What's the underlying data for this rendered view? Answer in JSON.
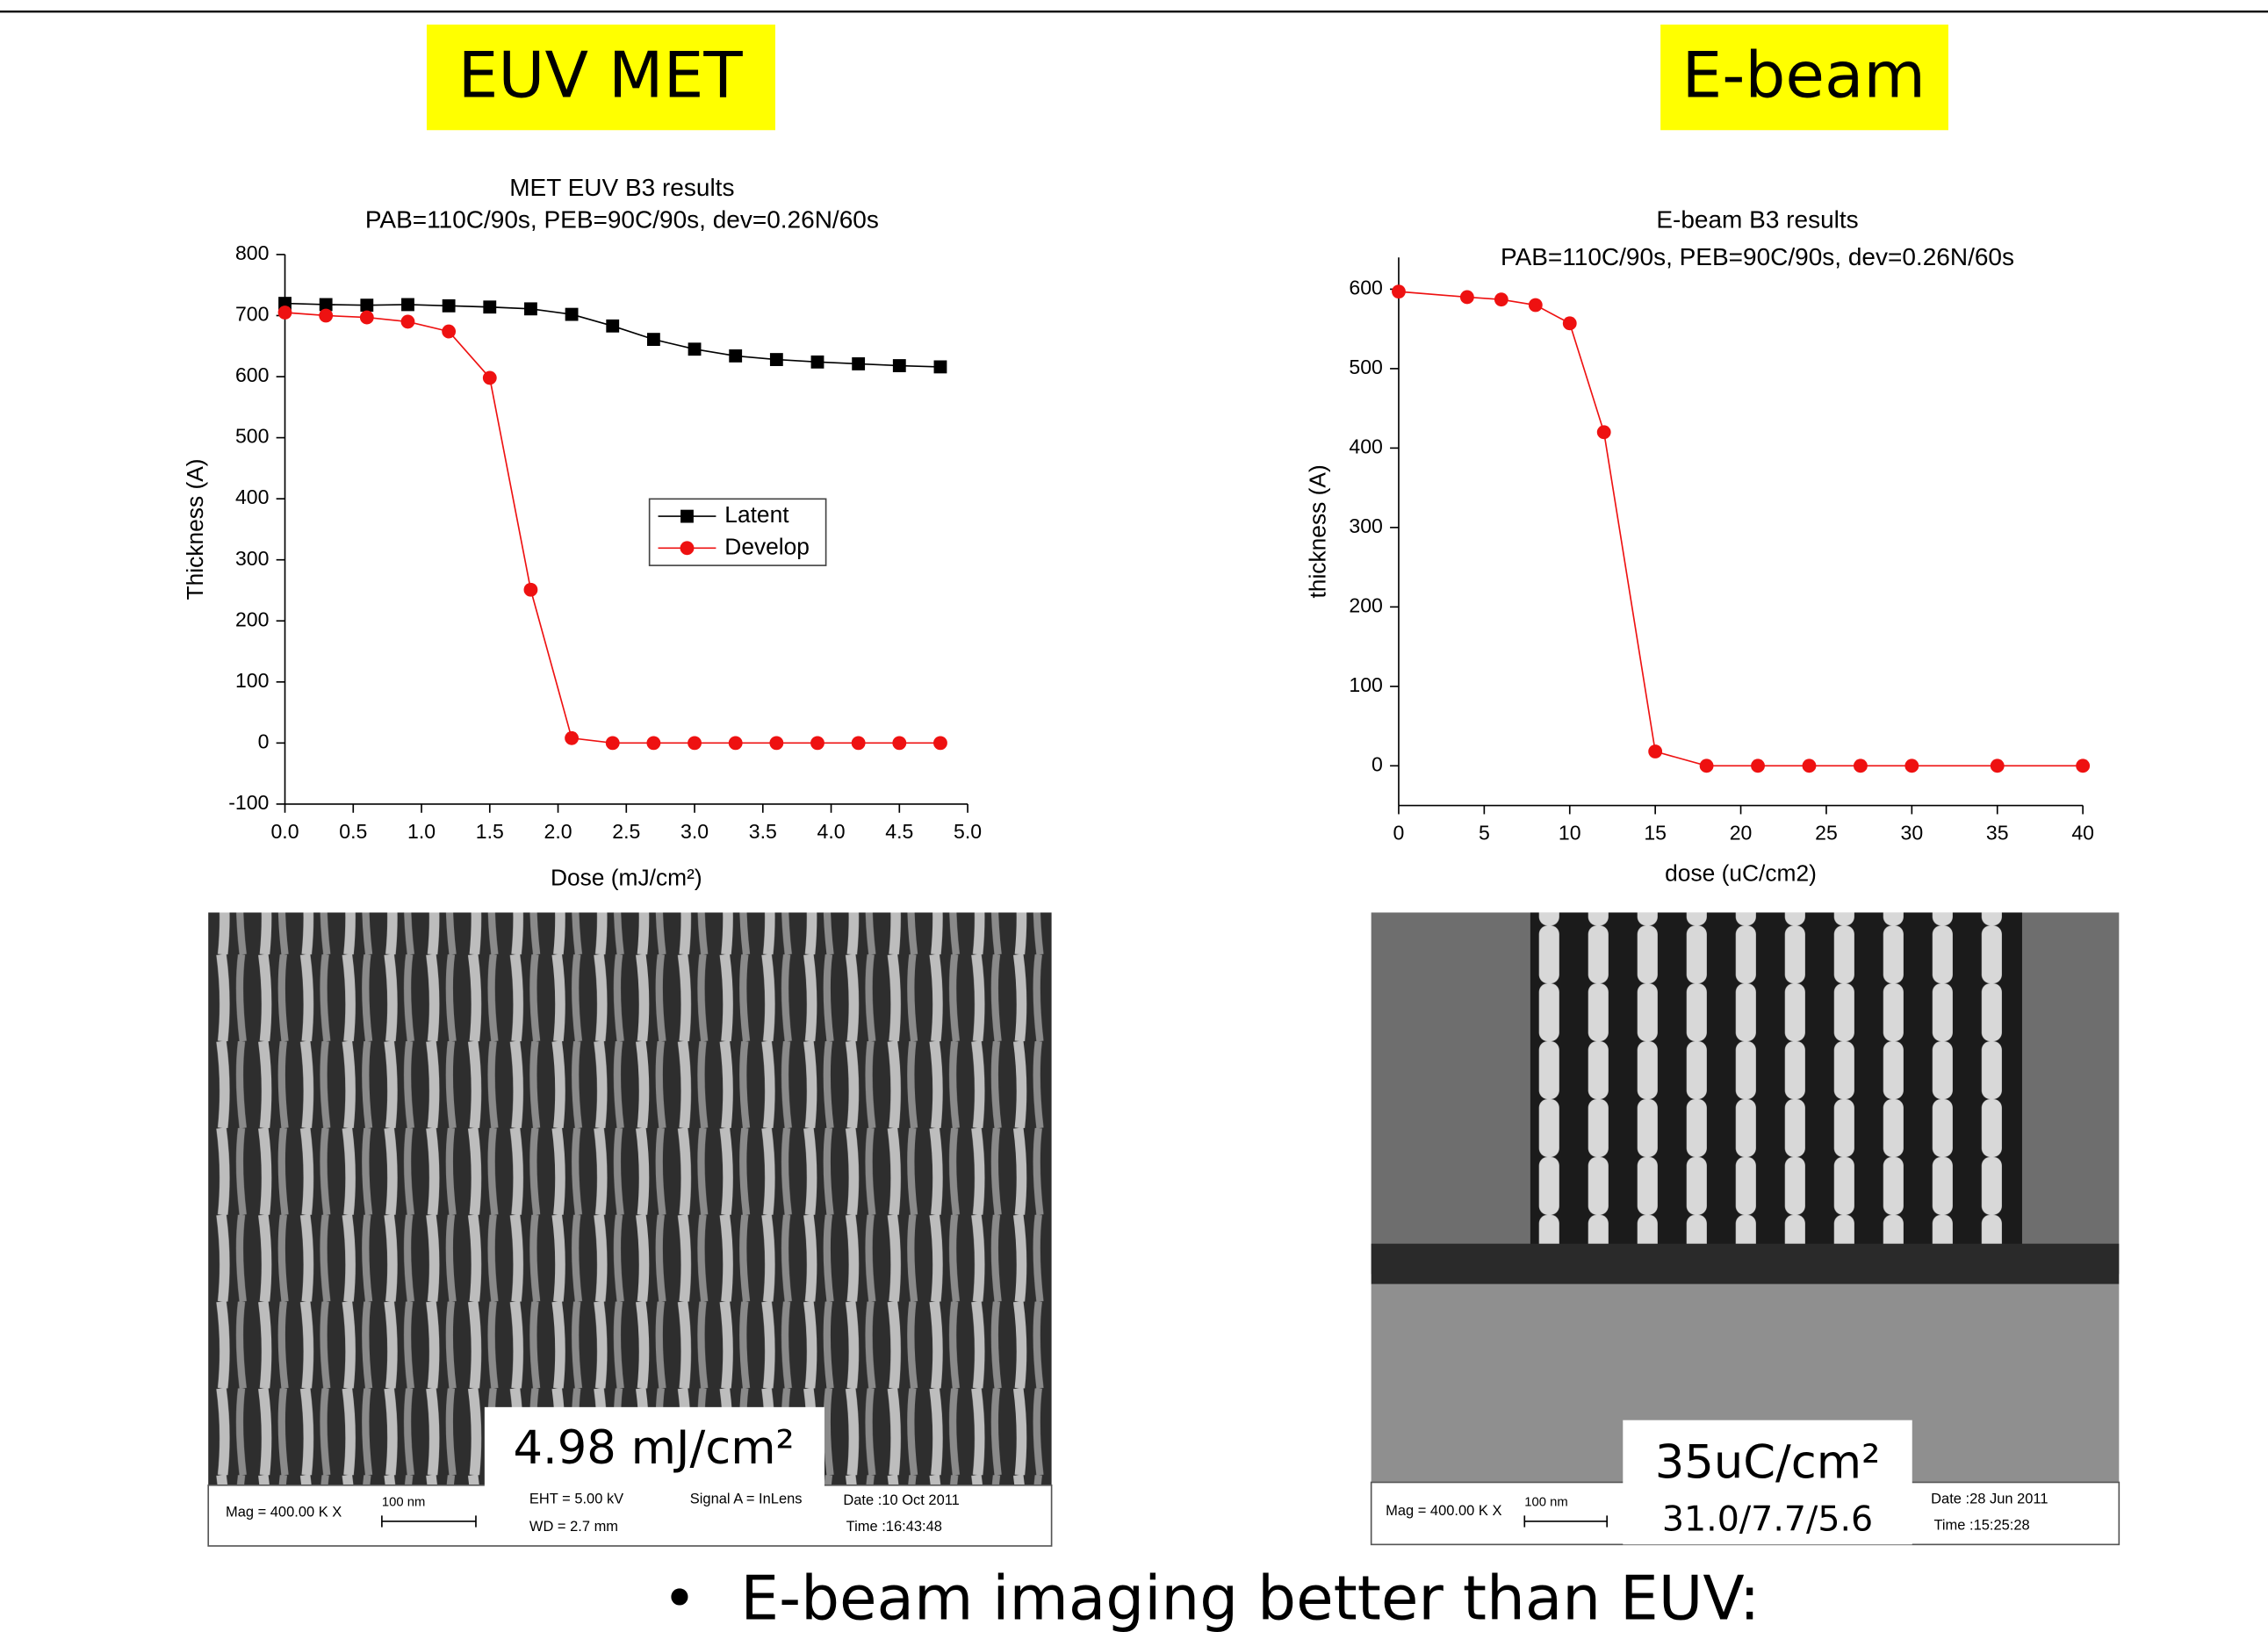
{
  "slide": {
    "left_heading": "EUV MET",
    "right_heading": "E-beam",
    "bullet": "E-beam imaging better than EUV:",
    "left_image": {
      "dose_label": "4.98 mJ/cm²",
      "mag": "Mag = 400.00 K X",
      "scale": "100 nm",
      "eht": "EHT = 5.00 kV",
      "wd": "WD = 2.7 mm",
      "signal": "Signal A = InLens",
      "date": "Date :10 Oct 2011",
      "time": "Time :16:43:48"
    },
    "right_image": {
      "dose_label": "35uC/cm²",
      "cd_label": "31.0/7.7/5.6",
      "mag": "Mag = 400.00 K X",
      "scale": "100 nm",
      "date": "Date :28 Jun 2011",
      "time": "Time :15:25:28"
    }
  },
  "chart_data": [
    {
      "type": "line",
      "title": "MET EUV B3 results",
      "subtitle": "PAB=110C/90s, PEB=90C/90s, dev=0.26N/60s",
      "x_label": "Dose (mJ/cm²)",
      "y_label": "Thickness (A)",
      "x": [
        0,
        0.3,
        0.6,
        0.9,
        1.2,
        1.5,
        1.8,
        2.1,
        2.4,
        2.7,
        3.0,
        3.3,
        3.6,
        3.9,
        4.2,
        4.5,
        4.8
      ],
      "series": [
        {
          "name": "Latent",
          "color": "#000000",
          "marker": "square",
          "values": [
            720,
            718,
            717,
            718,
            716,
            714,
            711,
            702,
            683,
            661,
            645,
            634,
            628,
            624,
            621,
            618,
            616
          ]
        },
        {
          "name": "Develop",
          "color": "#ee1111",
          "marker": "circle",
          "values": [
            705,
            700,
            697,
            690,
            674,
            598,
            251,
            8,
            0,
            0,
            0,
            0,
            0,
            0,
            0,
            0,
            0
          ]
        }
      ],
      "xlim": [
        0,
        5
      ],
      "xticks": [
        {
          "value": 0,
          "label": "0.0"
        },
        0.5,
        {
          "value": 1,
          "label": "1.0"
        },
        1.5,
        {
          "value": 2,
          "label": "2.0"
        },
        2.5,
        {
          "value": 3,
          "label": "3.0"
        },
        3.5,
        {
          "value": 4,
          "label": "4.0"
        },
        4.5,
        {
          "value": 5,
          "label": "5.0"
        }
      ],
      "ylim": [
        -100,
        800
      ],
      "yticks": [
        -100,
        0,
        100,
        200,
        300,
        400,
        500,
        600,
        700,
        800
      ],
      "legend": "center"
    },
    {
      "type": "line",
      "title": "E-beam B3 results",
      "subtitle": "PAB=110C/90s, PEB=90C/90s, dev=0.26N/60s",
      "x_label": "dose (uC/cm2)",
      "y_label": "thickness (A)",
      "x": [
        0,
        4,
        6,
        8,
        10,
        12,
        15,
        18,
        21,
        24,
        27,
        30,
        35,
        40
      ],
      "values": [
        597,
        590,
        587,
        580,
        557,
        420,
        18,
        0,
        0,
        0,
        0,
        0,
        0,
        0
      ],
      "color": "#ee1111",
      "marker": "circle",
      "xlim": [
        0,
        40
      ],
      "xticks": [
        0,
        5,
        10,
        15,
        20,
        25,
        30,
        35,
        40
      ],
      "ylim": [
        -50,
        640
      ],
      "yticks": [
        0,
        100,
        200,
        300,
        400,
        500,
        600
      ]
    }
  ]
}
